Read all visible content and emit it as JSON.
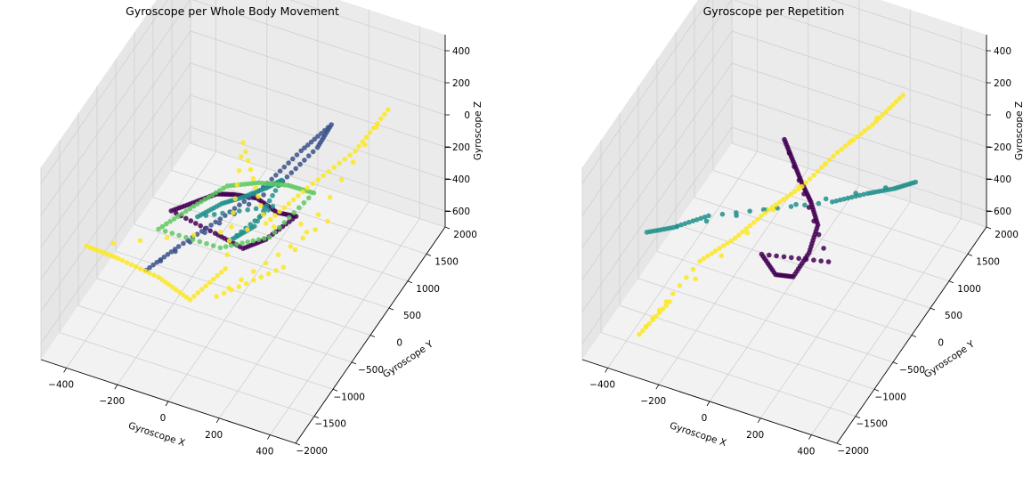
{
  "chart_data": [
    {
      "type": "scatter",
      "title": "Gyroscope per Whole Body Movement",
      "xlabel": "Gyroscope X",
      "ylabel": "Gyroscope Y",
      "zlabel": "Gyroscope Z",
      "xlim": [
        -500,
        500
      ],
      "ylim": [
        -2000,
        2000
      ],
      "zlim": [
        -700,
        500
      ],
      "xticks": [
        "−400",
        "−200",
        "0",
        "200",
        "400"
      ],
      "yticks": [
        "−2000",
        "−1500",
        "−1000",
        "−500",
        "0",
        "500",
        "1000",
        "1500",
        "2000"
      ],
      "zticks": [
        "−600",
        "−400",
        "−200",
        "0",
        "200",
        "400"
      ],
      "grid": true,
      "colors": [
        "#440154",
        "#3b528b",
        "#21918c",
        "#5ec962",
        "#fde725"
      ],
      "series": [
        {
          "color": "#440154",
          "values": [
            [
              -150,
              -900,
              40
            ],
            [
              -100,
              -600,
              20
            ],
            [
              -60,
              -300,
              -10
            ],
            [
              -20,
              -100,
              -60
            ],
            [
              40,
              100,
              -120
            ],
            [
              90,
              300,
              -250
            ],
            [
              120,
              600,
              -360
            ],
            [
              60,
              200,
              -400
            ],
            [
              0,
              0,
              -420
            ],
            [
              -80,
              -200,
              -300
            ]
          ]
        },
        {
          "color": "#3b528b",
          "values": [
            [
              -220,
              -1100,
              -300
            ],
            [
              -150,
              -700,
              -250
            ],
            [
              -60,
              -200,
              -200
            ],
            [
              50,
              200,
              -80
            ],
            [
              140,
              600,
              60
            ],
            [
              200,
              1000,
              120
            ],
            [
              160,
              900,
              -10
            ],
            [
              80,
              400,
              -120
            ]
          ]
        },
        {
          "color": "#21918c",
          "values": [
            [
              -120,
              -400,
              -150
            ],
            [
              -60,
              -150,
              -120
            ],
            [
              0,
              0,
              -100
            ],
            [
              60,
              200,
              -80
            ],
            [
              100,
              350,
              -60
            ],
            [
              30,
              100,
              -300
            ],
            [
              -30,
              -80,
              -350
            ],
            [
              80,
              250,
              -200
            ]
          ]
        },
        {
          "color": "#5ec962",
          "values": [
            [
              -200,
              -900,
              -100
            ],
            [
              -120,
              -500,
              -50
            ],
            [
              -40,
              -150,
              0
            ],
            [
              40,
              150,
              -40
            ],
            [
              110,
              450,
              -120
            ],
            [
              160,
              800,
              -260
            ],
            [
              60,
              300,
              -420
            ],
            [
              -60,
              -200,
              -380
            ]
          ]
        },
        {
          "color": "#fde725",
          "values": [
            [
              -350,
              -1800,
              20
            ],
            [
              -300,
              -1300,
              -200
            ],
            [
              -200,
              -900,
              -400
            ],
            [
              -120,
              -600,
              -600
            ],
            [
              -40,
              -200,
              -500
            ],
            [
              0,
              0,
              240
            ],
            [
              60,
              200,
              -300
            ],
            [
              150,
              700,
              -200
            ],
            [
              250,
              1300,
              -120
            ],
            [
              320,
              1700,
              40
            ],
            [
              100,
              400,
              -620
            ],
            [
              -60,
              -300,
              -650
            ],
            [
              200,
              900,
              -450
            ]
          ]
        }
      ]
    },
    {
      "type": "scatter",
      "title": "Gyroscope per Repetition",
      "xlabel": "Gyroscope X",
      "ylabel": "Gyroscope Y",
      "zlabel": "Gyroscope Z",
      "xlim": [
        -500,
        500
      ],
      "ylim": [
        -2000,
        2000
      ],
      "zlim": [
        -700,
        500
      ],
      "xticks": [
        "−400",
        "−200",
        "0",
        "200",
        "400"
      ],
      "yticks": [
        "−2000",
        "−1500",
        "−1000",
        "−500",
        "0",
        "500",
        "1000",
        "1500",
        "2000"
      ],
      "zticks": [
        "−600",
        "−400",
        "−200",
        "0",
        "200",
        "400"
      ],
      "grid": true,
      "colors": [
        "#440154",
        "#21918c",
        "#fde725"
      ],
      "series": [
        {
          "color": "#440154",
          "values": [
            [
              0,
              0,
              260
            ],
            [
              20,
              100,
              100
            ],
            [
              40,
              200,
              -60
            ],
            [
              60,
              300,
              -200
            ],
            [
              80,
              350,
              -350
            ],
            [
              60,
              250,
              -500
            ],
            [
              20,
              100,
              -620
            ],
            [
              -20,
              -100,
              -560
            ],
            [
              -60,
              -200,
              -420
            ],
            [
              100,
              500,
              -620
            ]
          ]
        },
        {
          "color": "#21918c",
          "values": [
            [
              -320,
              -1500,
              20
            ],
            [
              -260,
              -1200,
              -20
            ],
            [
              -180,
              -800,
              -40
            ],
            [
              100,
              600,
              -280
            ],
            [
              180,
              1000,
              -320
            ],
            [
              240,
              1300,
              -360
            ],
            [
              280,
              1600,
              -400
            ]
          ]
        },
        {
          "color": "#fde725",
          "values": [
            [
              -200,
              -900,
              -300
            ],
            [
              -120,
              -500,
              -250
            ],
            [
              -40,
              -150,
              -150
            ],
            [
              40,
              200,
              -80
            ],
            [
              120,
              600,
              40
            ],
            [
              200,
              1000,
              120
            ],
            [
              260,
              1400,
              200
            ],
            [
              -260,
              -1300,
              -450
            ],
            [
              -320,
              -1700,
              -550
            ]
          ]
        }
      ]
    }
  ]
}
